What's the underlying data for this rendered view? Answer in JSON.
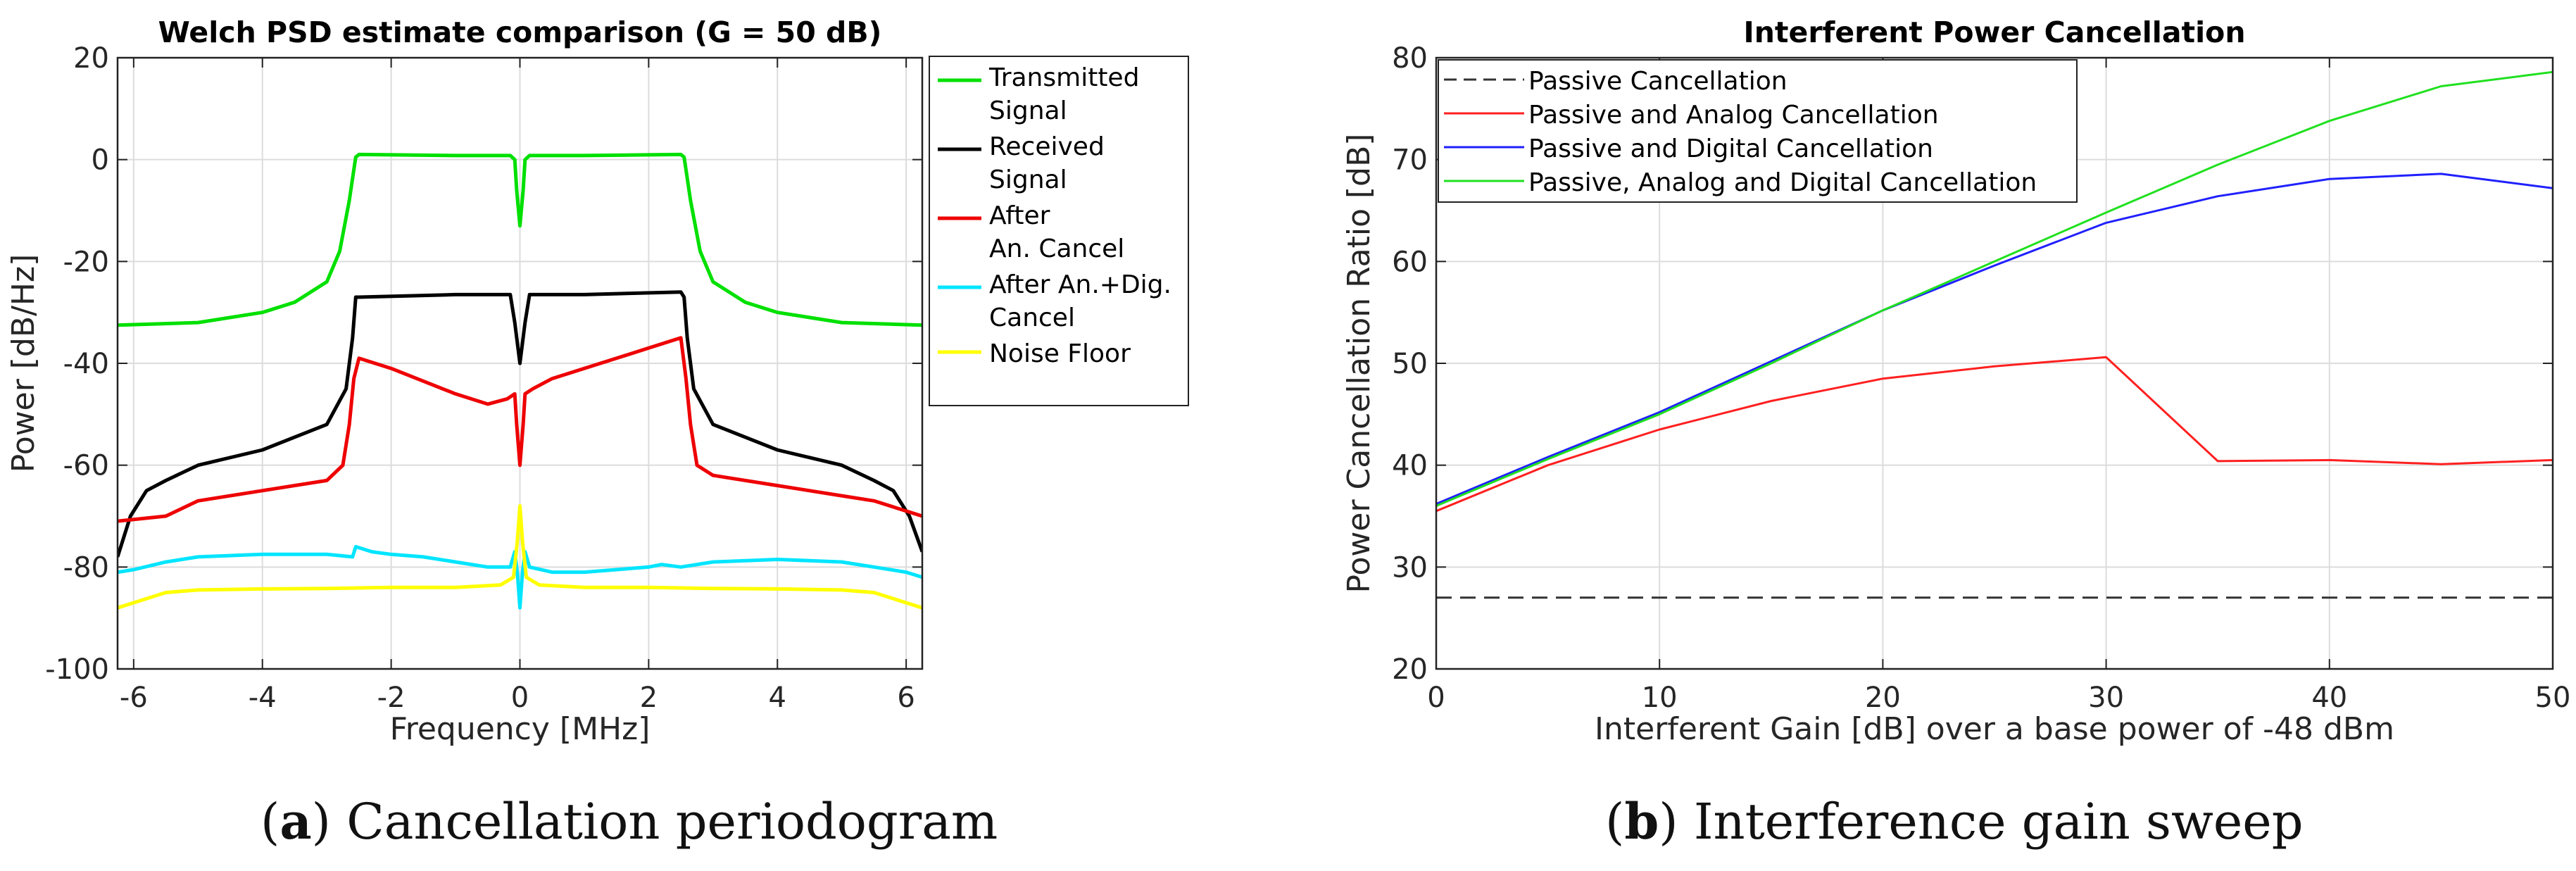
{
  "captions": [
    {
      "letter": "a",
      "text": "Cancellation periodogram"
    },
    {
      "letter": "b",
      "text": "Interference gain sweep"
    }
  ],
  "chart_data": [
    {
      "type": "line",
      "title": "Welch PSD estimate comparison (G = 50 dB)",
      "xlabel": "Frequency [MHz]",
      "ylabel": "Power [dB/Hz]",
      "xlim": [
        -6.25,
        6.25
      ],
      "ylim": [
        -100,
        20
      ],
      "xticks": [
        -6,
        -4,
        -2,
        0,
        2,
        4,
        6
      ],
      "yticks": [
        20,
        0,
        -20,
        -40,
        -60,
        -80,
        -100
      ],
      "grid": true,
      "legend_position": "outside-right",
      "series": [
        {
          "name": "Transmitted Signal",
          "color": "#00e000",
          "x": [
            -6.25,
            -5,
            -4,
            -3.5,
            -3,
            -2.8,
            -2.65,
            -2.58,
            -2.55,
            -2.5,
            -1,
            -0.15,
            -0.08,
            -0.05,
            0,
            0.05,
            0.08,
            0.15,
            1,
            2.5,
            2.55,
            2.58,
            2.65,
            2.8,
            3,
            3.5,
            4,
            5,
            6.25
          ],
          "y": [
            -32.5,
            -32,
            -30,
            -28,
            -24,
            -18,
            -8,
            -2,
            0.5,
            1,
            0.8,
            0.8,
            0,
            -6,
            -13,
            -6,
            0,
            0.8,
            0.8,
            1,
            0.5,
            -2,
            -8,
            -18,
            -24,
            -28,
            -30,
            -32,
            -32.5
          ]
        },
        {
          "name": "Received Signal",
          "color": "#000000",
          "x": [
            -6.25,
            -6.05,
            -5.8,
            -5.5,
            -5,
            -4,
            -3,
            -2.7,
            -2.6,
            -2.55,
            -2.5,
            -1,
            -0.15,
            -0.08,
            0,
            0.08,
            0.15,
            1,
            2.5,
            2.55,
            2.6,
            2.7,
            3,
            4,
            5,
            5.5,
            5.8,
            6.05,
            6.25
          ],
          "y": [
            -78,
            -70,
            -65,
            -63,
            -60,
            -57,
            -52,
            -45,
            -35,
            -27,
            -27,
            -26.5,
            -26.5,
            -32,
            -40,
            -32,
            -26.5,
            -26.5,
            -26,
            -27,
            -35,
            -45,
            -52,
            -57,
            -60,
            -63,
            -65,
            -70,
            -77
          ]
        },
        {
          "name": "After An. Cancel",
          "color": "#ee0000",
          "x": [
            -6.25,
            -5.5,
            -5,
            -4,
            -3,
            -2.75,
            -2.65,
            -2.58,
            -2.5,
            -2,
            -1.5,
            -1,
            -0.5,
            -0.2,
            -0.08,
            -0.05,
            0,
            0.05,
            0.08,
            0.2,
            0.5,
            1,
            1.5,
            2,
            2.5,
            2.58,
            2.65,
            2.75,
            3,
            4,
            5,
            5.5,
            6.25
          ],
          "y": [
            -71,
            -70,
            -67,
            -65,
            -63,
            -60,
            -52,
            -43,
            -39,
            -41,
            -43.5,
            -46,
            -48,
            -47,
            -46,
            -52,
            -60,
            -52,
            -46,
            -45,
            -43,
            -41,
            -39,
            -37,
            -35,
            -43,
            -52,
            -60,
            -62,
            -64,
            -66,
            -67,
            -70
          ]
        },
        {
          "name": "After An.+Dig. Cancel",
          "color": "#00e5ff",
          "x": [
            -6.25,
            -6,
            -5.5,
            -5,
            -4,
            -3,
            -2.6,
            -2.55,
            -2.3,
            -2,
            -1.5,
            -1,
            -0.5,
            -0.15,
            -0.08,
            -0.04,
            0,
            0.04,
            0.08,
            0.15,
            0.5,
            1,
            1.5,
            2,
            2.2,
            2.5,
            3,
            4,
            5,
            5.5,
            6,
            6.25
          ],
          "y": [
            -81,
            -80.5,
            -79,
            -78,
            -77.5,
            -77.5,
            -78,
            -76,
            -77,
            -77.5,
            -78,
            -79,
            -80,
            -80,
            -77,
            -81,
            -88,
            -81,
            -77,
            -80,
            -81,
            -81,
            -80.5,
            -80,
            -79.5,
            -80,
            -79,
            -78.5,
            -79,
            -80,
            -81,
            -82
          ]
        },
        {
          "name": "Noise Floor",
          "color": "#ffff00",
          "x": [
            -6.25,
            -6,
            -5.5,
            -5,
            -4,
            -3,
            -2,
            -1,
            -0.3,
            -0.1,
            -0.04,
            0,
            0.04,
            0.1,
            0.3,
            1,
            2,
            3,
            4,
            5,
            5.5,
            6,
            6.25
          ],
          "y": [
            -88,
            -87,
            -85,
            -84.5,
            -84.3,
            -84.2,
            -84,
            -84,
            -83.5,
            -82,
            -75,
            -68,
            -75,
            -82,
            -83.5,
            -84,
            -84,
            -84.2,
            -84.3,
            -84.5,
            -85,
            -87,
            -88
          ]
        }
      ]
    },
    {
      "type": "line",
      "title": "Interferent Power Cancellation",
      "xlabel": "Interferent Gain [dB] over a base power of -48 dBm",
      "ylabel": "Power Cancellation Ratio [dB]",
      "xlim": [
        0,
        50
      ],
      "ylim": [
        20,
        80
      ],
      "xticks": [
        0,
        10,
        20,
        30,
        40,
        50
      ],
      "yticks": [
        80,
        70,
        60,
        50,
        40,
        30,
        20
      ],
      "grid": true,
      "legend_position": "top-left",
      "series": [
        {
          "name": "Passive Cancellation",
          "color": "#333333",
          "dashed": true,
          "x": [
            0,
            50
          ],
          "y": [
            27,
            27
          ]
        },
        {
          "name": "Passive and Analog Cancellation",
          "color": "#ff2020",
          "x": [
            0,
            5,
            10,
            15,
            20,
            25,
            30,
            35,
            40,
            45,
            50
          ],
          "y": [
            35.5,
            40,
            43.5,
            46.3,
            48.5,
            49.7,
            50.6,
            40.4,
            40.5,
            40.1,
            40.5
          ]
        },
        {
          "name": "Passive and Digital Cancellation",
          "color": "#2020ff",
          "x": [
            0,
            5,
            10,
            15,
            20,
            25,
            30,
            35,
            40,
            45,
            50
          ],
          "y": [
            36.2,
            40.8,
            45.2,
            50.2,
            55.2,
            59.6,
            63.8,
            66.4,
            68.1,
            68.6,
            67.2
          ]
        },
        {
          "name": "Passive, Analog and Digital Cancellation",
          "color": "#20e020",
          "x": [
            0,
            5,
            10,
            15,
            20,
            25,
            30,
            35,
            40,
            45,
            50
          ],
          "y": [
            36.0,
            40.6,
            45.0,
            50.0,
            55.2,
            60.0,
            64.8,
            69.5,
            73.8,
            77.2,
            78.6
          ]
        }
      ]
    }
  ]
}
